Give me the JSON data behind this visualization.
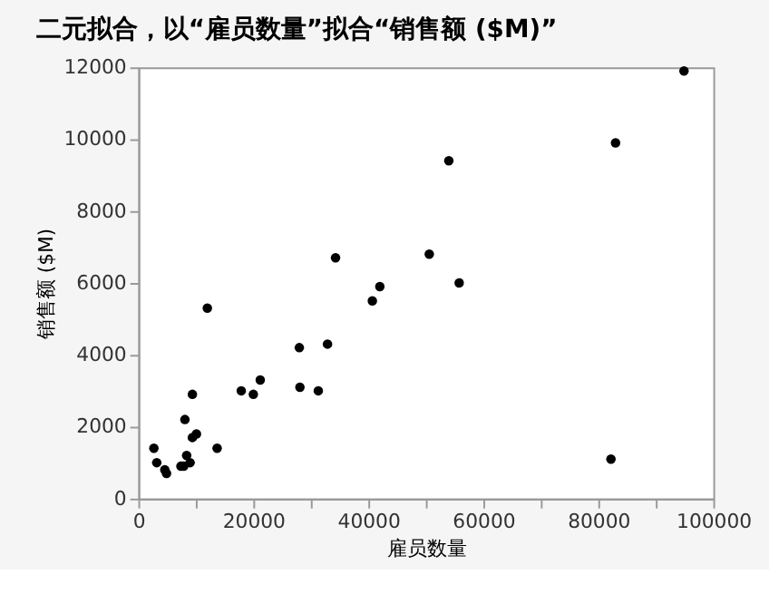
{
  "chart_data": {
    "type": "scatter",
    "title": "二元拟合，以“雇员数量”拟合“销售额 ($M)”",
    "xlabel": "雇员数量",
    "ylabel": "销售额 ($M)",
    "x": [
      2700,
      3200,
      4600,
      4900,
      7400,
      7900,
      8400,
      9000,
      8100,
      9400,
      10100,
      9400,
      12000,
      13700,
      17900,
      20000,
      21200,
      28000,
      28100,
      31300,
      32900,
      34300,
      40700,
      42000,
      50600,
      54000,
      55800,
      83000,
      82200,
      94900
    ],
    "series": [
      {
        "color": "#000000",
        "values": [
          1400,
          1000,
          800,
          700,
          900,
          900,
          1200,
          1000,
          2200,
          1700,
          1800,
          2900,
          5300,
          1400,
          3000,
          2900,
          3300,
          4200,
          3100,
          3000,
          4300,
          6700,
          5500,
          5900,
          6800,
          9400,
          6000,
          9900,
          1100,
          11900
        ]
      }
    ],
    "xlim": [
      0,
      100000
    ],
    "ylim": [
      0,
      12000
    ],
    "xticks": [
      0,
      {
        "value": 10000,
        "label": null
      },
      20000,
      {
        "value": 30000,
        "label": null
      },
      40000,
      {
        "value": 50000,
        "label": null
      },
      60000,
      {
        "value": 70000,
        "label": null
      },
      80000,
      {
        "value": 90000,
        "label": null
      },
      100000
    ],
    "yticks": [
      0,
      2000,
      4000,
      6000,
      8000,
      10000,
      12000
    ],
    "grid": false,
    "legend": false
  }
}
